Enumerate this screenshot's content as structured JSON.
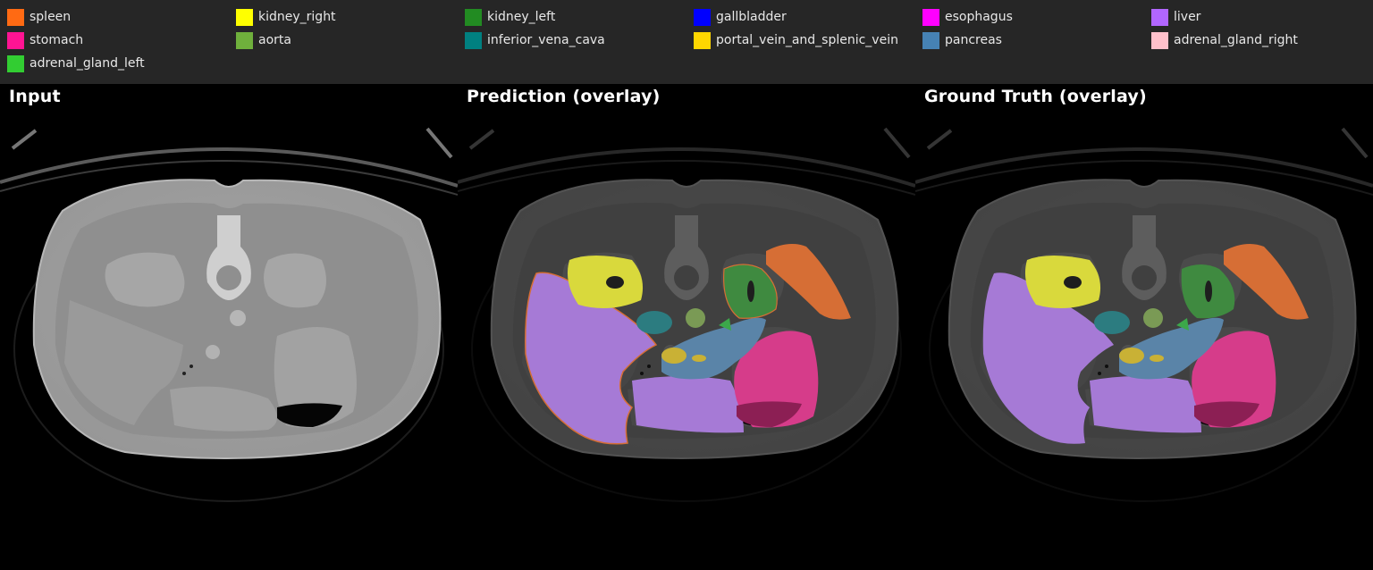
{
  "legend": {
    "items": [
      {
        "label": "spleen",
        "color": "#ff6a13"
      },
      {
        "label": "kidney_right",
        "color": "#ffff00"
      },
      {
        "label": "kidney_left",
        "color": "#228b22"
      },
      {
        "label": "gallbladder",
        "color": "#0000ff"
      },
      {
        "label": "esophagus",
        "color": "#ff00ff"
      },
      {
        "label": "liver",
        "color": "#b266ff"
      },
      {
        "label": "stomach",
        "color": "#ff1493"
      },
      {
        "label": "aorta",
        "color": "#6fb03c"
      },
      {
        "label": "inferior_vena_cava",
        "color": "#008080"
      },
      {
        "label": "portal_vein_and_splenic_vein",
        "color": "#ffd700"
      },
      {
        "label": "pancreas",
        "color": "#4682b4"
      },
      {
        "label": "adrenal_gland_right",
        "color": "#ffc0cb"
      },
      {
        "label": "adrenal_gland_left",
        "color": "#32cd32"
      }
    ]
  },
  "panels": {
    "input": {
      "title": "Input"
    },
    "prediction": {
      "title": "Prediction (overlay)"
    },
    "ground_truth": {
      "title": "Ground Truth (overlay)"
    }
  },
  "overlay_colors": {
    "liver": "#a67ad6",
    "kidney_right": "#d9d93c",
    "kidney_left": "#3f8a40",
    "spleen": "#d66e35",
    "stomach": "#d63c8a",
    "aorta": "#7a9a55",
    "inferior_vena_cava": "#2c7c80",
    "portal_vein_and_splenic_vein": "#c9b135",
    "pancreas": "#5a84a8",
    "adrenal_gland_left": "#3ca84a"
  }
}
